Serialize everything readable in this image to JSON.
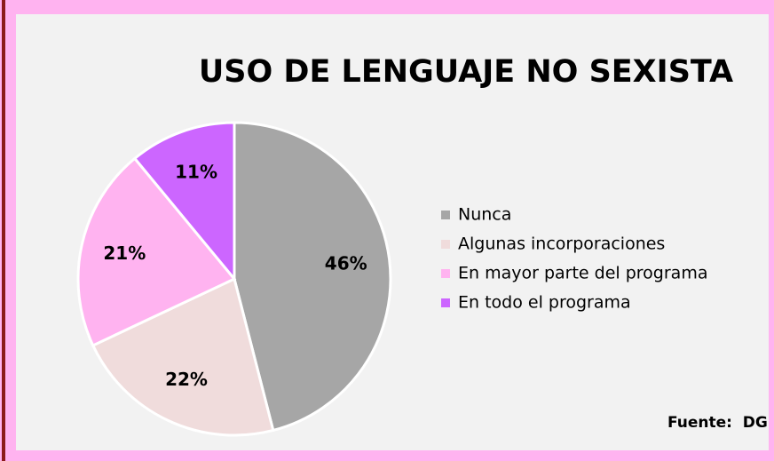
{
  "chart_data": {
    "type": "pie",
    "title": "USO DE LENGUAJE NO SEXISTA",
    "categories": [
      "Nunca",
      "Algunas incorporaciones",
      "En mayor parte del programa",
      "En todo el programa"
    ],
    "values": [
      46,
      22,
      21,
      11
    ],
    "value_labels": [
      "46%",
      "22%",
      "21%",
      "11%"
    ],
    "colors": [
      "#a6a6a6",
      "#f0dcdc",
      "#ffb3f0",
      "#cc66ff"
    ],
    "legend": "right",
    "source": "Fuente:  DG"
  }
}
